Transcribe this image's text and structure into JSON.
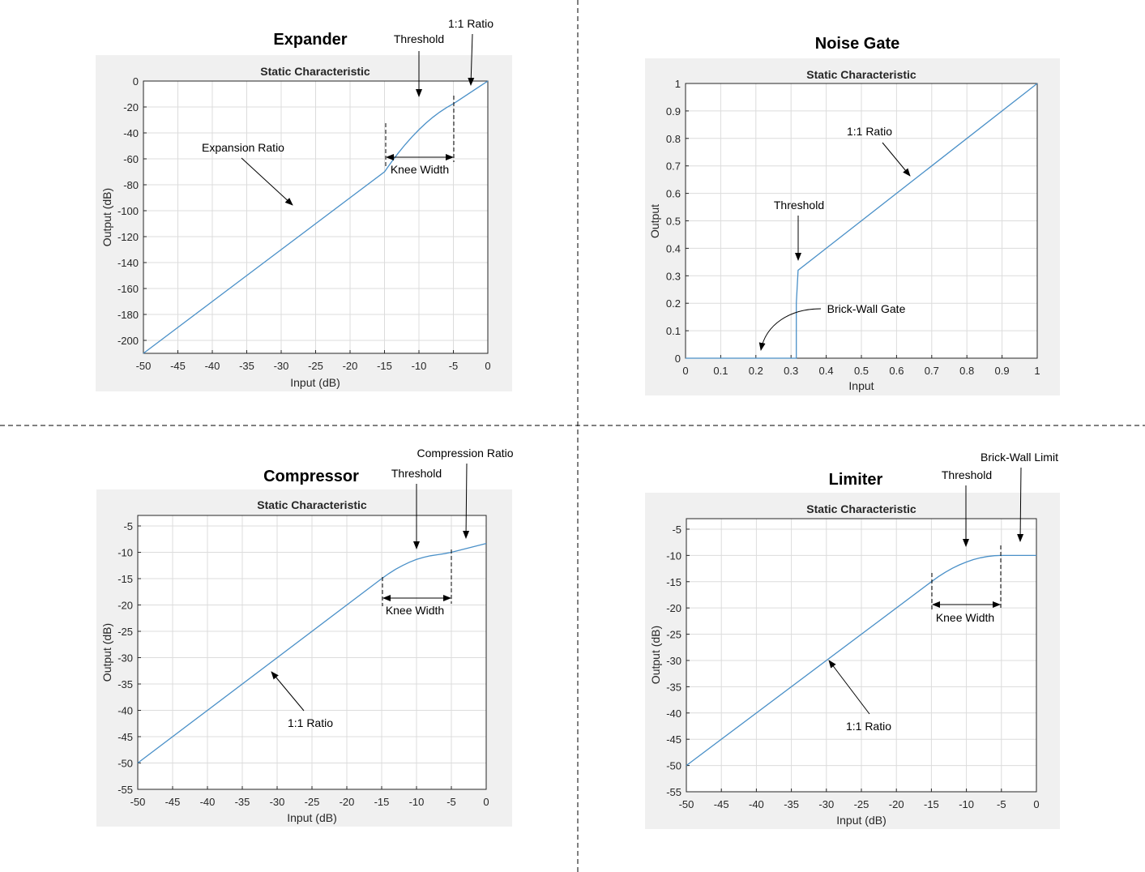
{
  "chart_data": [
    {
      "type": "line",
      "panel_title": "Expander",
      "title": "Static Characteristic",
      "xlabel": "Input (dB)",
      "ylabel": "Output (dB)",
      "xlim": [
        -50,
        0
      ],
      "ylim": [
        -210,
        0
      ],
      "xticks": [
        -50,
        -45,
        -40,
        -35,
        -30,
        -25,
        -20,
        -15,
        -10,
        -5,
        0
      ],
      "yticks": [
        0,
        -20,
        -40,
        -60,
        -80,
        -100,
        -120,
        -140,
        -160,
        -180,
        -200
      ],
      "grid": true,
      "series": [
        {
          "x": [
            -50,
            -45,
            -40,
            -35,
            -30,
            -25,
            -20,
            -15,
            -14,
            -13,
            -12,
            -11,
            -10,
            -9,
            -8,
            -7,
            -6,
            -5,
            -4,
            -3,
            -2,
            -1,
            0
          ],
          "y": [
            -210,
            -190,
            -170,
            -150,
            -130,
            -110,
            -90,
            -70,
            -62.5,
            -55.5,
            -49,
            -43,
            -37.5,
            -32.5,
            -28,
            -24,
            -20.5,
            -17.5,
            -14,
            -10.5,
            -7,
            -3.5,
            0
          ],
          "color": "#4a90c8"
        }
      ],
      "annotations": [
        "Threshold",
        "1:1 Ratio",
        "Expansion Ratio",
        "Knee Width"
      ]
    },
    {
      "type": "line",
      "panel_title": "Noise Gate",
      "title": "Static Characteristic",
      "xlabel": "Input",
      "ylabel": "Output",
      "xlim": [
        0,
        1
      ],
      "ylim": [
        0,
        1
      ],
      "xticks": [
        "0",
        "0.1",
        "0.2",
        "0.3",
        "0.4",
        "0.5",
        "0.6",
        "0.7",
        "0.8",
        "0.9",
        "1"
      ],
      "yticks": [
        "0",
        "0.1",
        "0.2",
        "0.3",
        "0.4",
        "0.5",
        "0.6",
        "0.7",
        "0.8",
        "0.9",
        "1"
      ],
      "grid": true,
      "series": [
        {
          "x": [
            0,
            0.315,
            0.315,
            0.32,
            1
          ],
          "y": [
            0,
            0,
            0.2,
            0.32,
            1
          ],
          "color": "#4a90c8"
        }
      ],
      "annotations": [
        "1:1 Ratio",
        "Threshold",
        "Brick-Wall Gate"
      ]
    },
    {
      "type": "line",
      "panel_title": "Compressor",
      "title": "Static Characteristic",
      "xlabel": "Input (dB)",
      "ylabel": "Output (dB)",
      "xlim": [
        -50,
        0
      ],
      "ylim": [
        -55,
        -3
      ],
      "xticks": [
        -50,
        -45,
        -40,
        -35,
        -30,
        -25,
        -20,
        -15,
        -10,
        -5,
        0
      ],
      "yticks": [
        -5,
        -10,
        -15,
        -20,
        -25,
        -30,
        -35,
        -40,
        -45,
        -50,
        -55
      ],
      "grid": true,
      "series": [
        {
          "x": [
            -50,
            -15,
            -14,
            -13,
            -12,
            -11,
            -10,
            -9,
            -8,
            -7,
            -6,
            -5,
            0
          ],
          "y": [
            -50,
            -15,
            -14.06,
            -13.22,
            -12.5,
            -11.88,
            -11.36,
            -10.96,
            -10.66,
            -10.46,
            -10.26,
            -10,
            -8.33
          ],
          "color": "#4a90c8"
        }
      ],
      "annotations": [
        "Threshold",
        "Compression Ratio",
        "Knee Width",
        "1:1 Ratio"
      ]
    },
    {
      "type": "line",
      "panel_title": "Limiter",
      "title": "Static Characteristic",
      "xlabel": "Input (dB)",
      "ylabel": "Output (dB)",
      "xlim": [
        -50,
        0
      ],
      "ylim": [
        -55,
        -3
      ],
      "xticks": [
        -50,
        -45,
        -40,
        -35,
        -30,
        -25,
        -20,
        -15,
        -10,
        -5,
        0
      ],
      "yticks": [
        -5,
        -10,
        -15,
        -20,
        -25,
        -30,
        -35,
        -40,
        -45,
        -50,
        -55
      ],
      "grid": true,
      "series": [
        {
          "x": [
            -50,
            -15,
            -14,
            -13,
            -12,
            -11,
            -10,
            -9,
            -8,
            -7,
            -6,
            -5,
            0
          ],
          "y": [
            -50,
            -15,
            -14.05,
            -13.2,
            -12.45,
            -11.8,
            -11.25,
            -10.8,
            -10.45,
            -10.2,
            -10.05,
            -10,
            -10
          ],
          "color": "#4a90c8"
        }
      ],
      "annotations": [
        "Threshold",
        "Brick-Wall Limit",
        "Knee Width",
        "1:1 Ratio"
      ]
    }
  ]
}
